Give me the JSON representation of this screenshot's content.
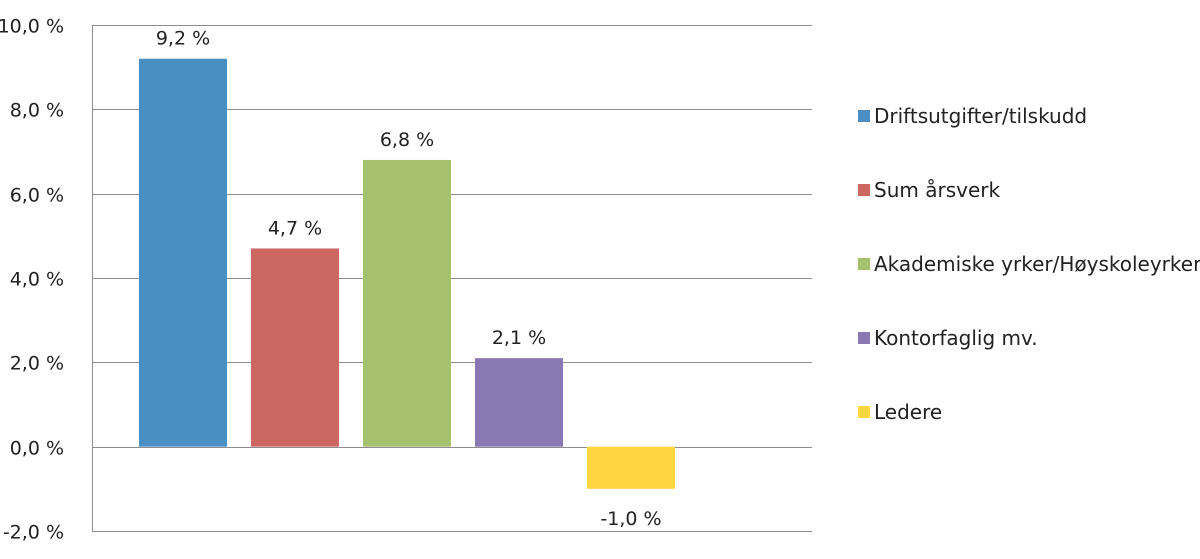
{
  "chart_data": {
    "type": "bar",
    "title": "",
    "xlabel": "",
    "ylabel": "",
    "categories": [
      "Driftsutgifter/tilskudd",
      "Sum årsverk",
      "Akademiske yrker/Høyskoleyrker",
      "Kontorfaglig mv.",
      "Ledere"
    ],
    "values": [
      9.2,
      4.7,
      6.8,
      2.1,
      -1.0
    ],
    "data_labels": [
      "9,2 %",
      "4,7 %",
      "6,8 %",
      "2,1 %",
      "-1,0 %"
    ],
    "colors": [
      "#4a8fc4",
      "#cc6761",
      "#a6c26e",
      "#8a78b2",
      "#fdd640"
    ],
    "ylim": [
      -2.0,
      10.0
    ],
    "yticks": [
      -2.0,
      0.0,
      2.0,
      4.0,
      6.0,
      8.0,
      10.0
    ],
    "ytick_labels": [
      "-2,0 %",
      "0,0 %",
      "2,0 %",
      "4,0 %",
      "6,0 %",
      "8,0 %",
      "10,0 %"
    ],
    "grid": true,
    "legend": {
      "position": "right",
      "entries": [
        "Driftsutgifter/tilskudd",
        "Sum årsverk",
        "Akademiske yrker/Høyskoleyrker",
        "Kontorfaglig mv.",
        "Ledere"
      ]
    }
  }
}
